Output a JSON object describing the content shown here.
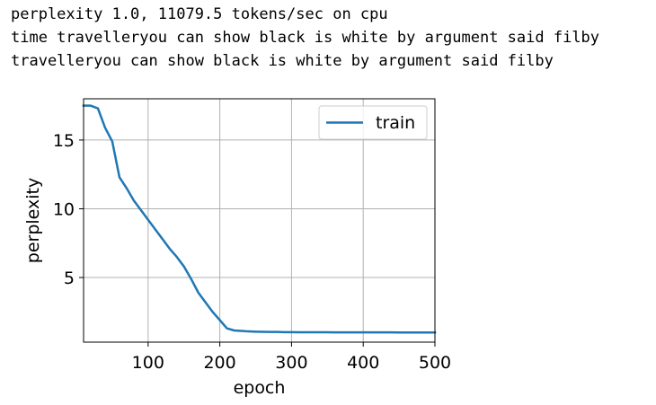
{
  "console": {
    "lines": [
      "perplexity 1.0, 11079.5 tokens/sec on cpu",
      "time travelleryou can show black is white by argument said filby",
      "travelleryou can show black is white by argument said filby"
    ]
  },
  "chart_data": {
    "type": "line",
    "title": "",
    "xlabel": "epoch",
    "ylabel": "perplexity",
    "xlim": [
      10,
      500
    ],
    "ylim": [
      0.3,
      18
    ],
    "xticks": [
      100,
      200,
      300,
      400,
      500
    ],
    "yticks": [
      5,
      10,
      15
    ],
    "grid": true,
    "legend_position": "top-right",
    "series": [
      {
        "name": "train",
        "color": "#1f77b4",
        "x": [
          10,
          20,
          30,
          40,
          50,
          60,
          70,
          80,
          90,
          100,
          110,
          120,
          130,
          140,
          150,
          160,
          170,
          180,
          190,
          200,
          210,
          220,
          230,
          240,
          250,
          260,
          270,
          280,
          290,
          300,
          310,
          320,
          330,
          340,
          350,
          360,
          370,
          380,
          390,
          400,
          410,
          420,
          430,
          440,
          450,
          460,
          470,
          480,
          490,
          500
        ],
        "y": [
          17.5,
          17.5,
          17.3,
          15.9,
          14.9,
          12.3,
          11.5,
          10.6,
          9.9,
          9.2,
          8.5,
          7.8,
          7.1,
          6.5,
          5.8,
          4.9,
          3.9,
          3.2,
          2.5,
          1.9,
          1.3,
          1.15,
          1.12,
          1.08,
          1.06,
          1.05,
          1.04,
          1.04,
          1.03,
          1.03,
          1.02,
          1.02,
          1.02,
          1.02,
          1.02,
          1.01,
          1.01,
          1.01,
          1.01,
          1.01,
          1.01,
          1.01,
          1.01,
          1.01,
          1.0,
          1.0,
          1.0,
          1.0,
          1.0,
          1.0
        ]
      }
    ]
  }
}
